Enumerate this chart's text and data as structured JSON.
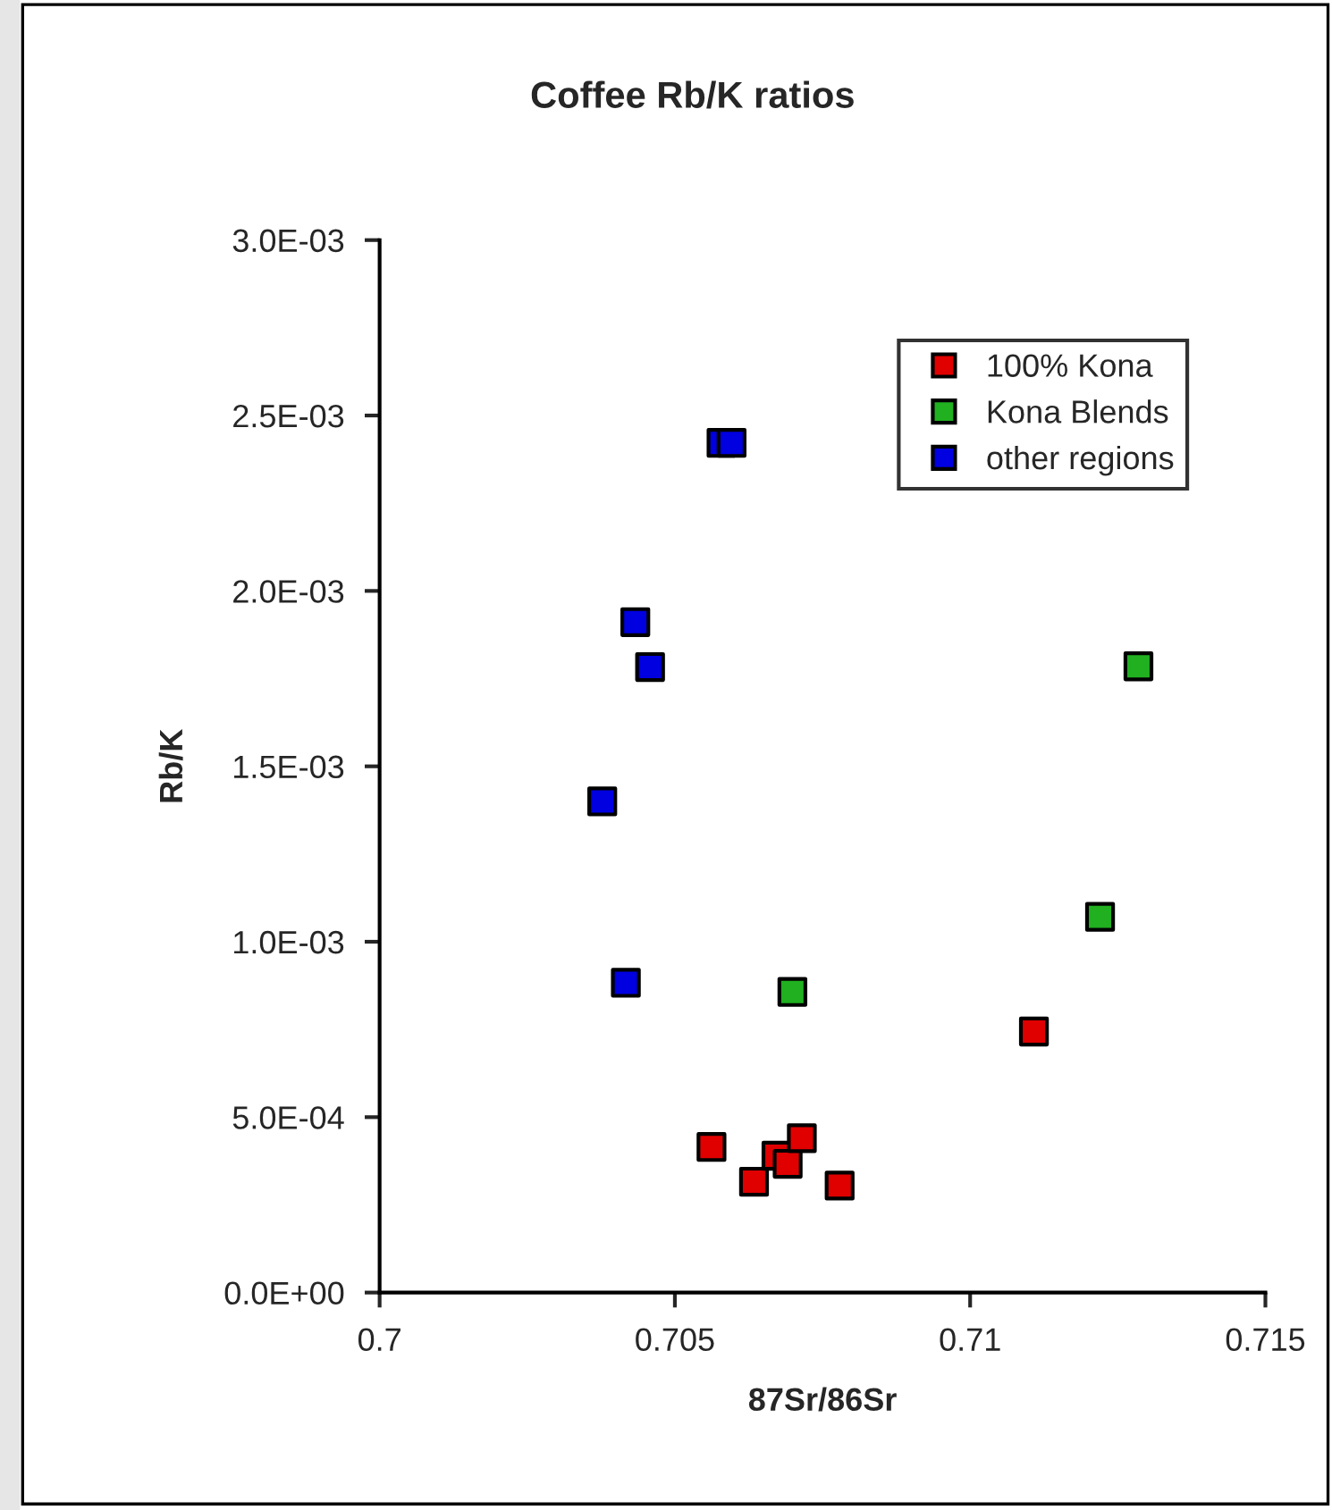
{
  "chart_data": {
    "type": "scatter",
    "title": "Coffee Rb/K ratios",
    "xlabel": "87Sr/86Sr",
    "ylabel": "Rb/K",
    "series": [
      {
        "name": "100% Kona",
        "color": "#e00000",
        "x": [
          0.70562,
          0.70634,
          0.70672,
          0.70691,
          0.70715,
          0.70779,
          0.71108
        ],
        "values": [
          0.000415,
          0.000316,
          0.00039,
          0.000367,
          0.00044,
          0.000305,
          0.000744
        ]
      },
      {
        "name": "Kona Blends",
        "color": "#20b020",
        "x": [
          0.70699,
          0.7122,
          0.71285
        ],
        "values": [
          0.000857,
          0.001071,
          0.001785
        ]
      },
      {
        "name": "other regions",
        "color": "#0000e0",
        "x": [
          0.70377,
          0.70417,
          0.70433,
          0.70458,
          0.70579,
          0.70596
        ],
        "values": [
          0.0014,
          0.000883,
          0.001911,
          0.001783,
          0.002422,
          0.002422
        ]
      }
    ],
    "xlim": [
      0.7,
      0.715
    ],
    "xticks": [
      0.7,
      0.705,
      0.71,
      0.715
    ],
    "ylim": [
      0,
      0.003
    ],
    "yticks": [
      {
        "value": 0,
        "label": "0.0E+00"
      },
      {
        "value": 0.0005,
        "label": "5.0E-04"
      },
      {
        "value": 0.001,
        "label": "1.0E-03"
      },
      {
        "value": 0.0015,
        "label": "1.5E-03"
      },
      {
        "value": 0.002,
        "label": "2.0E-03"
      },
      {
        "value": 0.0025,
        "label": "2.5E-03"
      },
      {
        "value": 0.003,
        "label": "3.0E-03"
      }
    ],
    "marker": "square",
    "grid": false,
    "legend": "top right"
  }
}
